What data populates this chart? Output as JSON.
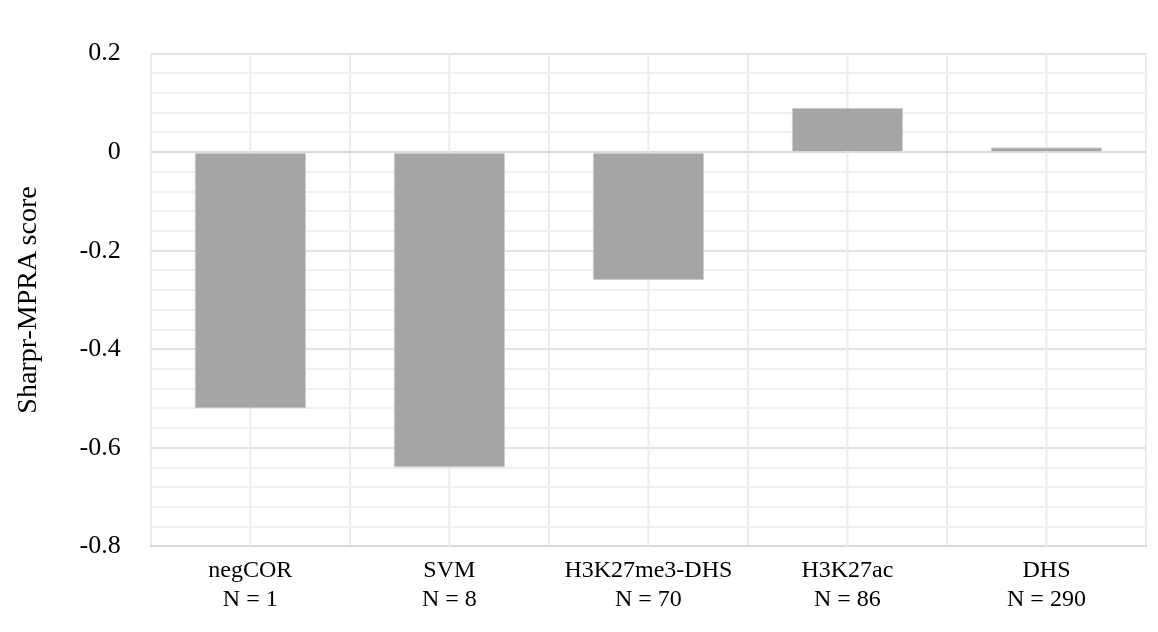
{
  "chart_data": {
    "type": "bar",
    "ylabel": "Sharpr-MPRA score",
    "categories": [
      "negCOR\nN = 1",
      "SVM\nN = 8",
      "H3K27me3-DHS\nN = 70",
      "H3K27ac\nN = 86",
      "DHS\nN = 290"
    ],
    "values": [
      -0.52,
      -0.64,
      -0.26,
      0.09,
      0.01
    ],
    "color": "#a5a5a5",
    "ylim": [
      -0.8,
      0.2
    ],
    "yticks": [
      -0.8,
      {
        "value": -0.76,
        "label": null
      },
      {
        "value": -0.72,
        "label": null
      },
      {
        "value": -0.68,
        "label": null
      },
      {
        "value": -0.64,
        "label": null
      },
      -0.6,
      {
        "value": -0.56,
        "label": null
      },
      {
        "value": -0.52,
        "label": null
      },
      {
        "value": -0.48,
        "label": null
      },
      {
        "value": -0.44,
        "label": null
      },
      -0.4,
      {
        "value": -0.36,
        "label": null
      },
      {
        "value": -0.32,
        "label": null
      },
      {
        "value": -0.28,
        "label": null
      },
      {
        "value": -0.24,
        "label": null
      },
      -0.2,
      {
        "value": -0.16,
        "label": null
      },
      {
        "value": -0.12,
        "label": null
      },
      {
        "value": -0.08,
        "label": null
      },
      {
        "value": -0.04,
        "label": null
      },
      0,
      {
        "value": 0.04,
        "label": null
      },
      {
        "value": 0.08,
        "label": null
      },
      {
        "value": 0.12,
        "label": null
      },
      {
        "value": 0.16,
        "label": null
      },
      0.2
    ],
    "grid": true,
    "legend": false
  }
}
